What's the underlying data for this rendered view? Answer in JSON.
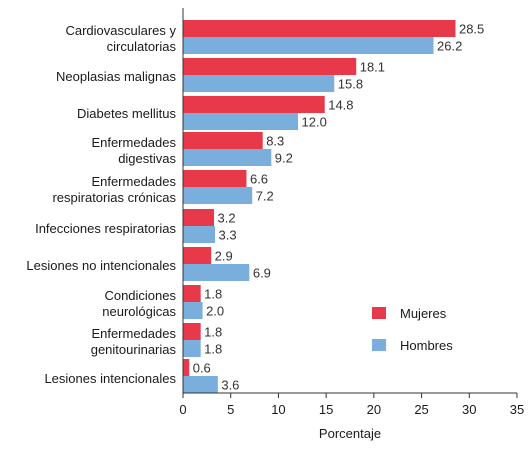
{
  "chart_data": {
    "type": "bar",
    "orientation": "horizontal",
    "categories": [
      [
        "Cardiovasculares y",
        "circulatorias"
      ],
      [
        "Neoplasias malignas"
      ],
      [
        "Diabetes mellitus"
      ],
      [
        "Enfermedades",
        "digestivas"
      ],
      [
        "Enfermedades",
        "respiratorias crónicas"
      ],
      [
        "Infecciones respiratorias"
      ],
      [
        "Lesiones no intencionales"
      ],
      [
        "Condiciones",
        "neurológicas"
      ],
      [
        "Enfermedades",
        "genitourinarias"
      ],
      [
        "Lesiones intencionales"
      ]
    ],
    "series": [
      {
        "name": "Mujeres",
        "color": "#e8394a",
        "values": [
          28.5,
          18.1,
          14.8,
          8.3,
          6.6,
          3.2,
          2.9,
          1.8,
          1.8,
          0.6
        ]
      },
      {
        "name": "Hombres",
        "color": "#7aaedd",
        "values": [
          26.2,
          15.8,
          12.0,
          9.2,
          7.2,
          3.3,
          6.9,
          2.0,
          1.8,
          3.6
        ]
      }
    ],
    "value_labels": [
      [
        "28.5",
        "26.2"
      ],
      [
        "18.1",
        "15.8"
      ],
      [
        "14.8",
        "12.0"
      ],
      [
        "8.3",
        "9.2"
      ],
      [
        "6.6",
        "7.2"
      ],
      [
        "3.2",
        "3.3"
      ],
      [
        "2.9",
        "6.9"
      ],
      [
        "1.8",
        "2.0"
      ],
      [
        "1.8",
        "1.8"
      ],
      [
        "0.6",
        "3.6"
      ]
    ],
    "xlabel": "Porcentaje",
    "ylabel": "",
    "title": "",
    "xlim": [
      0,
      35
    ],
    "xticks": [
      0,
      5,
      10,
      15,
      20,
      25,
      30,
      35
    ],
    "grid": false,
    "legend_position": "right"
  }
}
